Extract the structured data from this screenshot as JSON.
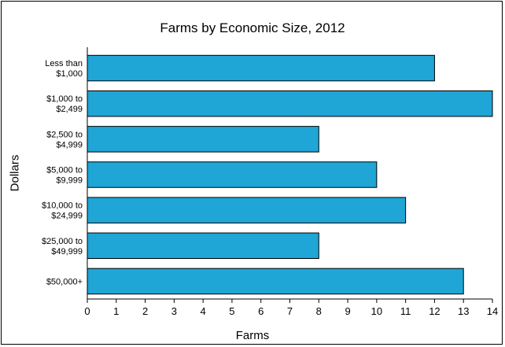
{
  "chart_data": {
    "type": "bar",
    "orientation": "horizontal",
    "title": "Farms by Economic Size, 2012",
    "xlabel": "Farms",
    "ylabel": "Dollars",
    "categories": [
      [
        "Less than",
        "$1,000"
      ],
      [
        "$1,000 to",
        "$2,499"
      ],
      [
        "$2,500 to",
        "$4,999"
      ],
      [
        "$5,000 to",
        "$9,999"
      ],
      [
        "$10,000 to",
        "$24,999"
      ],
      [
        "$25,000 to",
        "$49,999"
      ],
      [
        "$50,000+"
      ]
    ],
    "values": [
      12,
      14,
      8,
      10,
      11,
      8,
      13
    ],
    "xlim": [
      0,
      14
    ],
    "xticks": [
      "0",
      "1",
      "2",
      "3",
      "4",
      "5",
      "6",
      "7",
      "8",
      "9",
      "10",
      "11",
      "12",
      "13",
      "14"
    ],
    "grid": false,
    "legend": "none",
    "bar_color": "#1FA5D6"
  }
}
